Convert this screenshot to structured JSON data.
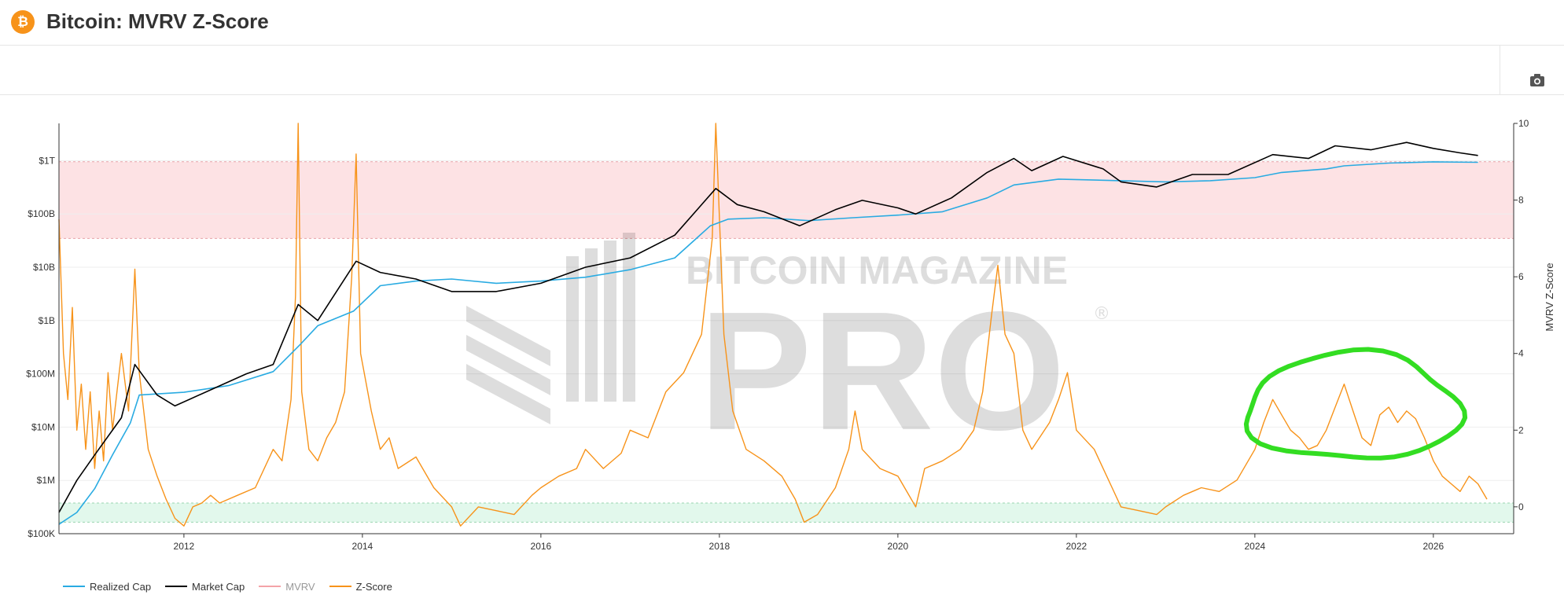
{
  "header": {
    "title": "Bitcoin: MVRV Z-Score",
    "logo_glyph": "₿",
    "brand_color": "#f7931a"
  },
  "toolbar": {
    "camera_icon": "camera-icon"
  },
  "watermark": {
    "line1": "BITCOIN MAGAZINE",
    "line2": "PRO",
    "registered": "®"
  },
  "chart_data": {
    "type": "line",
    "title": "Bitcoin: MVRV Z-Score",
    "x_ticks": [
      "2012",
      "2014",
      "2016",
      "2018",
      "2020",
      "2022",
      "2024",
      "2026"
    ],
    "y_left": {
      "scale": "log",
      "ticks": [
        "$100K",
        "$1M",
        "$10M",
        "$100M",
        "$1B",
        "$10B",
        "$100B",
        "$1T"
      ],
      "range": [
        100000,
        5000000000000
      ]
    },
    "y_right": {
      "label": "MVRV Z-Score",
      "ticks": [
        "0",
        "2",
        "4",
        "6",
        "8",
        "10"
      ],
      "range": [
        -0.7,
        10
      ]
    },
    "bands": [
      {
        "name": "high",
        "y_from": 7,
        "y_to": 9,
        "color": "#fde2e4",
        "axis": "right"
      },
      {
        "name": "low",
        "y_from": -0.4,
        "y_to": 0.1,
        "color": "#e2f8ec",
        "axis": "right"
      }
    ],
    "colors": {
      "realized_cap": "#29abe2",
      "market_cap": "#000000",
      "mvrv": "#f4a3a8",
      "z_score": "#f7931a",
      "annotation": "#33dd22"
    },
    "series": [
      {
        "name": "Realized Cap",
        "axis": "left",
        "points": [
          [
            2010.6,
            150000
          ],
          [
            2010.8,
            250000
          ],
          [
            2011.0,
            700000
          ],
          [
            2011.2,
            3000000
          ],
          [
            2011.4,
            12000000
          ],
          [
            2011.5,
            40000000
          ],
          [
            2012.0,
            45000000
          ],
          [
            2012.5,
            60000000
          ],
          [
            2013.0,
            110000000
          ],
          [
            2013.3,
            350000000
          ],
          [
            2013.5,
            800000000
          ],
          [
            2013.9,
            1500000000
          ],
          [
            2014.2,
            4500000000
          ],
          [
            2014.6,
            5500000000
          ],
          [
            2015.0,
            6000000000
          ],
          [
            2015.5,
            5000000000
          ],
          [
            2016.0,
            5500000000
          ],
          [
            2016.5,
            6500000000
          ],
          [
            2017.0,
            9000000000
          ],
          [
            2017.5,
            15000000000
          ],
          [
            2017.9,
            60000000000
          ],
          [
            2018.1,
            80000000000
          ],
          [
            2018.5,
            85000000000
          ],
          [
            2019.0,
            75000000000
          ],
          [
            2019.5,
            85000000000
          ],
          [
            2020.0,
            95000000000
          ],
          [
            2020.5,
            110000000000
          ],
          [
            2021.0,
            200000000000
          ],
          [
            2021.3,
            350000000000
          ],
          [
            2021.8,
            450000000000
          ],
          [
            2022.5,
            420000000000
          ],
          [
            2023.0,
            400000000000
          ],
          [
            2023.5,
            420000000000
          ],
          [
            2024.0,
            480000000000
          ],
          [
            2024.3,
            600000000000
          ],
          [
            2024.8,
            700000000000
          ],
          [
            2025.0,
            800000000000
          ],
          [
            2025.5,
            900000000000
          ],
          [
            2026.0,
            950000000000
          ],
          [
            2026.5,
            930000000000
          ]
        ]
      },
      {
        "name": "Market Cap",
        "axis": "left",
        "points": [
          [
            2010.6,
            250000
          ],
          [
            2010.8,
            1000000
          ],
          [
            2011.0,
            3000000
          ],
          [
            2011.3,
            15000000
          ],
          [
            2011.45,
            150000000
          ],
          [
            2011.7,
            40000000
          ],
          [
            2011.9,
            25000000
          ],
          [
            2012.3,
            50000000
          ],
          [
            2012.7,
            100000000
          ],
          [
            2013.0,
            150000000
          ],
          [
            2013.28,
            2000000000
          ],
          [
            2013.5,
            1000000000
          ],
          [
            2013.93,
            13000000000
          ],
          [
            2014.2,
            8000000000
          ],
          [
            2014.6,
            6000000000
          ],
          [
            2015.0,
            3500000000
          ],
          [
            2015.5,
            3500000000
          ],
          [
            2016.0,
            5000000000
          ],
          [
            2016.5,
            10000000000
          ],
          [
            2017.0,
            15000000000
          ],
          [
            2017.5,
            40000000000
          ],
          [
            2017.96,
            300000000000
          ],
          [
            2018.2,
            150000000000
          ],
          [
            2018.5,
            110000000000
          ],
          [
            2018.9,
            60000000000
          ],
          [
            2019.3,
            120000000000
          ],
          [
            2019.6,
            180000000000
          ],
          [
            2020.0,
            130000000000
          ],
          [
            2020.2,
            100000000000
          ],
          [
            2020.6,
            200000000000
          ],
          [
            2021.0,
            600000000000
          ],
          [
            2021.3,
            1100000000000
          ],
          [
            2021.5,
            650000000000
          ],
          [
            2021.85,
            1200000000000
          ],
          [
            2022.3,
            700000000000
          ],
          [
            2022.5,
            400000000000
          ],
          [
            2022.9,
            320000000000
          ],
          [
            2023.3,
            550000000000
          ],
          [
            2023.7,
            550000000000
          ],
          [
            2024.2,
            1300000000000
          ],
          [
            2024.6,
            1100000000000
          ],
          [
            2024.9,
            1900000000000
          ],
          [
            2025.3,
            1600000000000
          ],
          [
            2025.7,
            2200000000000
          ],
          [
            2026.0,
            1700000000000
          ],
          [
            2026.3,
            1400000000000
          ],
          [
            2026.5,
            1250000000000
          ]
        ]
      },
      {
        "name": "MVRV",
        "axis": "right",
        "hidden": true,
        "points": []
      },
      {
        "name": "Z-Score",
        "axis": "right",
        "points": [
          [
            2010.6,
            7.5
          ],
          [
            2010.65,
            4.0
          ],
          [
            2010.7,
            2.8
          ],
          [
            2010.75,
            5.2
          ],
          [
            2010.8,
            2.0
          ],
          [
            2010.85,
            3.2
          ],
          [
            2010.9,
            1.5
          ],
          [
            2010.95,
            3.0
          ],
          [
            2011.0,
            1.0
          ],
          [
            2011.05,
            2.5
          ],
          [
            2011.1,
            1.2
          ],
          [
            2011.15,
            3.5
          ],
          [
            2011.2,
            2.0
          ],
          [
            2011.3,
            4.0
          ],
          [
            2011.38,
            2.5
          ],
          [
            2011.45,
            6.2
          ],
          [
            2011.5,
            3.5
          ],
          [
            2011.6,
            1.5
          ],
          [
            2011.7,
            0.8
          ],
          [
            2011.8,
            0.2
          ],
          [
            2011.9,
            -0.3
          ],
          [
            2012.0,
            -0.5
          ],
          [
            2012.1,
            0.0
          ],
          [
            2012.2,
            0.1
          ],
          [
            2012.3,
            0.3
          ],
          [
            2012.4,
            0.1
          ],
          [
            2012.6,
            0.3
          ],
          [
            2012.8,
            0.5
          ],
          [
            2013.0,
            1.5
          ],
          [
            2013.1,
            1.2
          ],
          [
            2013.2,
            2.8
          ],
          [
            2013.25,
            5.5
          ],
          [
            2013.28,
            10.0
          ],
          [
            2013.32,
            3.0
          ],
          [
            2013.4,
            1.5
          ],
          [
            2013.5,
            1.2
          ],
          [
            2013.6,
            1.8
          ],
          [
            2013.7,
            2.2
          ],
          [
            2013.8,
            3.0
          ],
          [
            2013.88,
            6.0
          ],
          [
            2013.93,
            9.2
          ],
          [
            2013.98,
            4.0
          ],
          [
            2014.1,
            2.5
          ],
          [
            2014.2,
            1.5
          ],
          [
            2014.3,
            1.8
          ],
          [
            2014.4,
            1.0
          ],
          [
            2014.6,
            1.3
          ],
          [
            2014.8,
            0.5
          ],
          [
            2015.0,
            0.0
          ],
          [
            2015.1,
            -0.5
          ],
          [
            2015.3,
            0.0
          ],
          [
            2015.5,
            -0.1
          ],
          [
            2015.7,
            -0.2
          ],
          [
            2015.9,
            0.3
          ],
          [
            2016.0,
            0.5
          ],
          [
            2016.2,
            0.8
          ],
          [
            2016.4,
            1.0
          ],
          [
            2016.5,
            1.5
          ],
          [
            2016.7,
            1.0
          ],
          [
            2016.9,
            1.4
          ],
          [
            2017.0,
            2.0
          ],
          [
            2017.2,
            1.8
          ],
          [
            2017.4,
            3.0
          ],
          [
            2017.6,
            3.5
          ],
          [
            2017.8,
            4.5
          ],
          [
            2017.92,
            7.0
          ],
          [
            2017.96,
            10.0
          ],
          [
            2018.05,
            4.5
          ],
          [
            2018.15,
            2.5
          ],
          [
            2018.3,
            1.5
          ],
          [
            2018.5,
            1.2
          ],
          [
            2018.7,
            0.8
          ],
          [
            2018.85,
            0.2
          ],
          [
            2018.95,
            -0.4
          ],
          [
            2019.1,
            -0.2
          ],
          [
            2019.3,
            0.5
          ],
          [
            2019.45,
            1.5
          ],
          [
            2019.52,
            2.5
          ],
          [
            2019.6,
            1.5
          ],
          [
            2019.8,
            1.0
          ],
          [
            2020.0,
            0.8
          ],
          [
            2020.2,
            0.0
          ],
          [
            2020.3,
            1.0
          ],
          [
            2020.5,
            1.2
          ],
          [
            2020.7,
            1.5
          ],
          [
            2020.85,
            2.0
          ],
          [
            2020.95,
            3.0
          ],
          [
            2021.05,
            5.0
          ],
          [
            2021.12,
            6.3
          ],
          [
            2021.2,
            4.5
          ],
          [
            2021.3,
            4.0
          ],
          [
            2021.4,
            2.0
          ],
          [
            2021.5,
            1.5
          ],
          [
            2021.7,
            2.2
          ],
          [
            2021.8,
            2.8
          ],
          [
            2021.9,
            3.5
          ],
          [
            2022.0,
            2.0
          ],
          [
            2022.2,
            1.5
          ],
          [
            2022.4,
            0.5
          ],
          [
            2022.5,
            0.0
          ],
          [
            2022.7,
            -0.1
          ],
          [
            2022.9,
            -0.2
          ],
          [
            2023.0,
            0.0
          ],
          [
            2023.2,
            0.3
          ],
          [
            2023.4,
            0.5
          ],
          [
            2023.6,
            0.4
          ],
          [
            2023.8,
            0.7
          ],
          [
            2024.0,
            1.5
          ],
          [
            2024.1,
            2.2
          ],
          [
            2024.2,
            2.8
          ],
          [
            2024.3,
            2.4
          ],
          [
            2024.4,
            2.0
          ],
          [
            2024.5,
            1.8
          ],
          [
            2024.6,
            1.5
          ],
          [
            2024.7,
            1.6
          ],
          [
            2024.8,
            2.0
          ],
          [
            2024.9,
            2.6
          ],
          [
            2025.0,
            3.2
          ],
          [
            2025.1,
            2.5
          ],
          [
            2025.2,
            1.8
          ],
          [
            2025.3,
            1.6
          ],
          [
            2025.4,
            2.4
          ],
          [
            2025.5,
            2.6
          ],
          [
            2025.6,
            2.2
          ],
          [
            2025.7,
            2.5
          ],
          [
            2025.8,
            2.3
          ],
          [
            2025.9,
            1.8
          ],
          [
            2026.0,
            1.2
          ],
          [
            2026.1,
            0.8
          ],
          [
            2026.2,
            0.6
          ],
          [
            2026.3,
            0.4
          ],
          [
            2026.4,
            0.8
          ],
          [
            2026.5,
            0.6
          ],
          [
            2026.6,
            0.2
          ]
        ]
      }
    ],
    "annotations": [
      {
        "type": "hand-drawn ellipse",
        "color": "#33dd22",
        "x_from": 2023.9,
        "x_to": 2026.3,
        "y_from": 1.0,
        "y_to": 4.0
      }
    ],
    "legend": {
      "position": "bottom-left",
      "entries": [
        "Realized Cap",
        "Market Cap",
        "MVRV",
        "Z-Score"
      ],
      "muted": [
        "MVRV"
      ]
    }
  }
}
